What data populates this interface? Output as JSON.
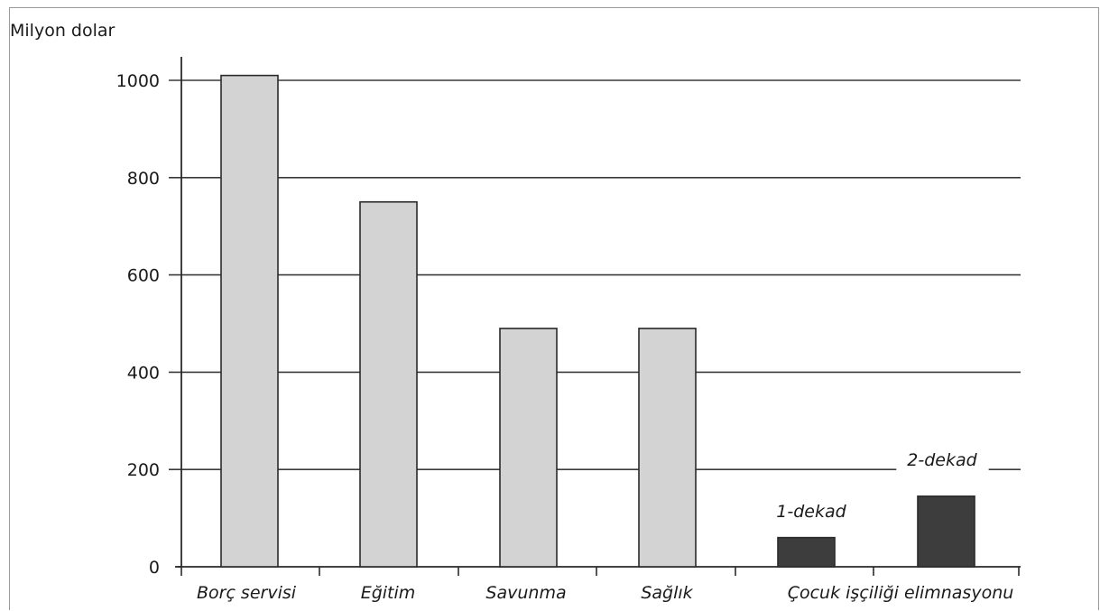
{
  "chart_data": {
    "type": "bar",
    "ylabel": "Milyon dolar",
    "ylim": [
      0,
      1000
    ],
    "yticks": [
      0,
      200,
      400,
      600,
      800,
      1000
    ],
    "grid": true,
    "categories": [
      "Borç servisi",
      "Eğitim",
      "Savunma",
      "Sağlık",
      "Çocuk işçiliği elimnasyonu"
    ],
    "bars": [
      {
        "category": "Borç servisi",
        "value": 1010,
        "color": "#d3d3d3"
      },
      {
        "category": "Eğitim",
        "value": 750,
        "color": "#d3d3d3"
      },
      {
        "category": "Savunma",
        "value": 490,
        "color": "#d3d3d3"
      },
      {
        "category": "Sağlık",
        "value": 490,
        "color": "#d3d3d3"
      },
      {
        "category": "Çocuk işçiliği elimnasyonu",
        "value": 60,
        "label": "1-dekad",
        "color": "#3d3d3d"
      },
      {
        "category": "Çocuk işçiliği elimnasyonu",
        "value": 145,
        "label": "2-dekad",
        "color": "#3d3d3d"
      }
    ]
  }
}
